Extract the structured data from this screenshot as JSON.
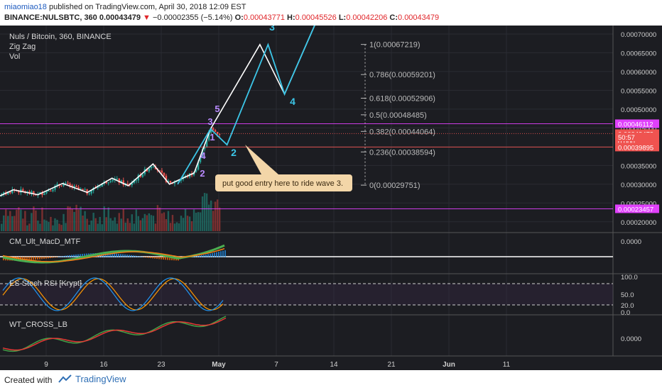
{
  "header": {
    "author": "miaomiao18",
    "published": "published on TradingView.com, April 30, 2018 12:09 EST",
    "symbol": "BINANCE:NULSBTC, 360",
    "last": "0.00043479",
    "change": "−0.00002355 (−5.14%)",
    "o_label": "O:",
    "o": "0.00043771",
    "h_label": "H:",
    "h": "0.00045526",
    "l_label": "L:",
    "l": "0.00042206",
    "c_label": "C:",
    "c": "0.00043479"
  },
  "legend": {
    "title": "Nuls / Bitcoin, 360, BINANCE",
    "zigzag": "Zig Zag",
    "vol": "Vol"
  },
  "indicators": {
    "macd": "CM_Ult_MacD_MTF",
    "stoch": "ES Stoch RSI [Krypt]",
    "wt": "WT_CROSS_LB"
  },
  "annotation": "put good entry here to ride wave 3.",
  "footer": {
    "created": "Created with",
    "brand": "TradingView"
  },
  "colors": {
    "background": "#1c1d22",
    "up": "#26a69a",
    "down": "#ef5350",
    "zigzag": "#ffffff",
    "projection": "#3cc6e8",
    "wave_label": "#b98aff",
    "fib": "#bbbbbb",
    "magenta": "#e040fb",
    "annotation_bg": "#f3d6a8"
  },
  "chart_data": [
    {
      "type": "line",
      "title": "Nuls / Bitcoin, 360, BINANCE",
      "x_ticks": [
        "9",
        "16",
        "23",
        "May",
        "7",
        "14",
        "21",
        "Jun",
        "11"
      ],
      "y_ticks": [
        "0.00070000",
        "0.00065000",
        "0.00060000",
        "0.00055000",
        "0.00050000",
        "0.00045000",
        "0.00040000",
        "0.00035000",
        "0.00030000",
        "0.00025000",
        "0.00020000"
      ],
      "ylim": [
        0.000175,
        0.000715
      ],
      "series": [
        {
          "name": "Zig Zag",
          "points": [
            [
              "Apr 1",
              0.000288
            ],
            [
              "Apr 3",
              0.000265
            ],
            [
              "Apr 5",
              0.000285
            ],
            [
              "Apr 8",
              0.000272
            ],
            [
              "Apr 11",
              0.000302
            ],
            [
              "Apr 14",
              0.000278
            ],
            [
              "Apr 17",
              0.000316
            ],
            [
              "Apr 19",
              0.000296
            ],
            [
              "Apr 22",
              0.000354
            ],
            [
              "Apr 24",
              0.0003
            ],
            [
              "Apr 27",
              0.00033
            ],
            [
              "Apr 29",
              0.000447
            ],
            [
              "May 5",
              0.000672
            ],
            [
              "May 8",
              0.00054
            ],
            [
              "May 12",
              0.00074
            ]
          ]
        },
        {
          "name": "Projection",
          "points": [
            [
              "Apr 25",
              0.0003
            ],
            [
              "Apr 29",
              0.000447
            ],
            [
              "May 1",
              0.000405
            ],
            [
              "May 6",
              0.000672
            ],
            [
              "May 8",
              0.00054
            ],
            [
              "May 12",
              0.00074
            ]
          ]
        }
      ],
      "fib_levels": [
        {
          "label": "1(0.00067219)",
          "value": 0.00067219
        },
        {
          "label": "0.786(0.00059201)",
          "value": 0.00059201
        },
        {
          "label": "0.618(0.00052906)",
          "value": 0.00052906
        },
        {
          "label": "0.5(0.00048485)",
          "value": 0.00048485
        },
        {
          "label": "0.382(0.00044064)",
          "value": 0.00044064
        },
        {
          "label": "0.236(0.00038594)",
          "value": 0.00038594
        },
        {
          "label": "0(0.00029751)",
          "value": 0.00029751
        }
      ],
      "price_tags": [
        {
          "label": "0.00046112",
          "value": 0.00046112,
          "color": "#e040fb"
        },
        {
          "label": "0.00043479",
          "value": 0.00043479,
          "color": "#ef5350"
        },
        {
          "label": "0.000",
          "value": 0.000414,
          "color": "#ef5350"
        },
        {
          "label": "50:57",
          "value": 0.000426,
          "color": "#ef5350"
        },
        {
          "label": "0.00039895",
          "value": 0.00039895,
          "color": "#ef5350"
        },
        {
          "label": "0.00023457",
          "value": 0.00023457,
          "color": "#e040fb"
        }
      ],
      "wave_labels": [
        {
          "text": "3",
          "color": "#3cc6e8"
        },
        {
          "text": "5",
          "color": "#b98aff"
        },
        {
          "text": "3",
          "color": "#b98aff"
        },
        {
          "text": "1",
          "color": "#b98aff"
        },
        {
          "text": "4",
          "color": "#b98aff"
        },
        {
          "text": "2",
          "color": "#b98aff"
        },
        {
          "text": "2",
          "color": "#3cc6e8"
        },
        {
          "text": "4",
          "color": "#3cc6e8"
        }
      ],
      "grid": true
    },
    {
      "type": "line",
      "title": "CM_Ult_MacD_MTF",
      "y_ticks": [
        "0.0000"
      ]
    },
    {
      "type": "line",
      "title": "ES Stoch RSI [Krypt]",
      "y_ticks": [
        "100.0",
        "50.0",
        "20.0",
        "0.0"
      ]
    },
    {
      "type": "line",
      "title": "WT_CROSS_LB",
      "y_ticks": [
        "0.0000"
      ]
    }
  ]
}
